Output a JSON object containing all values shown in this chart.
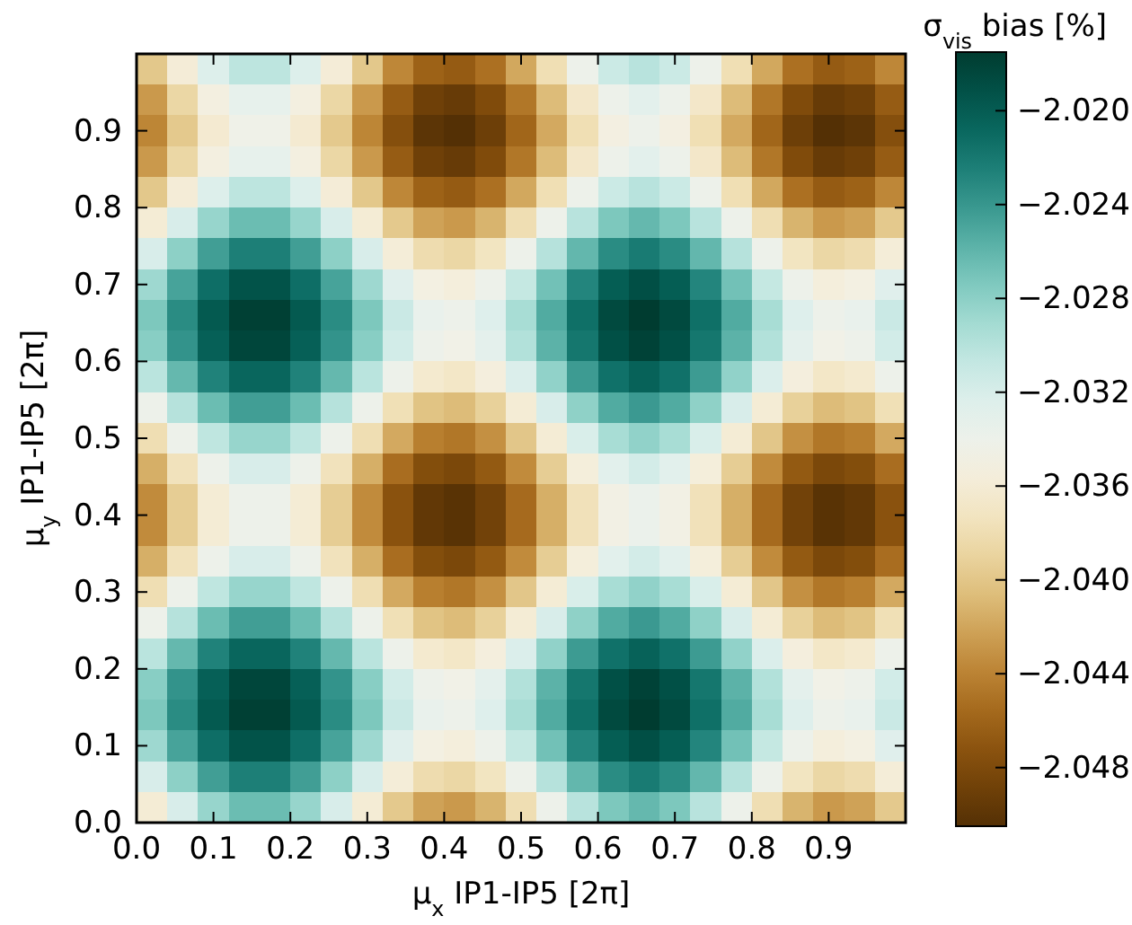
{
  "chart_data": {
    "type": "heatmap",
    "xlabel": "μ$_{x}$ IP1-IP5 [2π]",
    "ylabel": "μ$_{y}$ IP1-IP5 [2π]",
    "clabel": "σ$_{vis}$ bias [%]",
    "xlim": [
      0,
      1
    ],
    "ylim": [
      0,
      1
    ],
    "xticks": [
      {
        "value": 0,
        "label": "0.0"
      },
      0.1,
      0.2,
      0.3,
      0.4,
      0.5,
      0.6,
      0.7,
      0.8,
      0.9
    ],
    "yticks": [
      {
        "value": 0,
        "label": "0.0"
      },
      0.1,
      0.2,
      0.3,
      0.4,
      0.5,
      0.6,
      0.7,
      0.8,
      0.9
    ],
    "clim": [
      -2.0505,
      -2.0175
    ],
    "cticks": [
      {
        "value": -2.02,
        "label": "−2.020"
      },
      {
        "value": -2.024,
        "label": "−2.024"
      },
      {
        "value": -2.028,
        "label": "−2.028"
      },
      {
        "value": -2.032,
        "label": "−2.032"
      },
      {
        "value": -2.036,
        "label": "−2.036"
      },
      {
        "value": -2.04,
        "label": "−2.040"
      },
      {
        "value": -2.044,
        "label": "−2.044"
      },
      {
        "value": -2.048,
        "label": "−2.048"
      }
    ],
    "cells": [
      [
        -2.0399,
        -2.0359,
        -2.0324,
        -2.0304,
        -2.0304,
        -2.0324,
        -2.0359,
        -2.0399,
        -2.0437,
        -2.0461,
        -2.0466,
        -2.0451,
        -2.0419,
        -2.0379,
        -2.034,
        -2.0312,
        -2.0301,
        -2.0312,
        -2.034,
        -2.0379,
        -2.0419,
        -2.0451,
        -2.0466,
        -2.0461,
        -2.0437
      ],
      [
        -2.0427,
        -2.0387,
        -2.0352,
        -2.0332,
        -2.0332,
        -2.0352,
        -2.0387,
        -2.0427,
        -2.0465,
        -2.0489,
        -2.0494,
        -2.0479,
        -2.0447,
        -2.0407,
        -2.0368,
        -2.034,
        -2.0329,
        -2.034,
        -2.0368,
        -2.0407,
        -2.0447,
        -2.0479,
        -2.0494,
        -2.0489,
        -2.0465
      ],
      [
        -2.0438,
        -2.0398,
        -2.0363,
        -2.0343,
        -2.0343,
        -2.0363,
        -2.0398,
        -2.0438,
        -2.0476,
        -2.05,
        -2.0505,
        -2.049,
        -2.0458,
        -2.0418,
        -2.0379,
        -2.0351,
        -2.034,
        -2.0351,
        -2.0379,
        -2.0418,
        -2.0458,
        -2.049,
        -2.0505,
        -2.05,
        -2.0476
      ],
      [
        -2.0427,
        -2.0387,
        -2.0352,
        -2.0332,
        -2.0332,
        -2.0352,
        -2.0387,
        -2.0427,
        -2.0465,
        -2.0489,
        -2.0494,
        -2.0479,
        -2.0447,
        -2.0407,
        -2.0368,
        -2.034,
        -2.0329,
        -2.034,
        -2.0368,
        -2.0407,
        -2.0447,
        -2.0479,
        -2.0494,
        -2.0489,
        -2.0465
      ],
      [
        -2.0399,
        -2.0359,
        -2.0324,
        -2.0304,
        -2.0304,
        -2.0324,
        -2.0359,
        -2.0399,
        -2.0437,
        -2.0461,
        -2.0466,
        -2.0451,
        -2.0419,
        -2.0379,
        -2.034,
        -2.0312,
        -2.0301,
        -2.0312,
        -2.034,
        -2.0379,
        -2.0419,
        -2.0451,
        -2.0466,
        -2.0461,
        -2.0437
      ],
      [
        -2.036,
        -2.032,
        -2.0285,
        -2.0265,
        -2.0265,
        -2.0285,
        -2.032,
        -2.036,
        -2.0398,
        -2.0422,
        -2.0427,
        -2.0412,
        -2.038,
        -2.034,
        -2.0301,
        -2.0273,
        -2.0262,
        -2.0273,
        -2.0301,
        -2.034,
        -2.038,
        -2.0412,
        -2.0427,
        -2.0422,
        -2.0398
      ],
      [
        -2.032,
        -2.028,
        -2.0245,
        -2.0225,
        -2.0225,
        -2.0245,
        -2.028,
        -2.032,
        -2.0358,
        -2.0382,
        -2.0387,
        -2.0372,
        -2.034,
        -2.03,
        -2.0261,
        -2.0233,
        -2.0222,
        -2.0233,
        -2.0261,
        -2.03,
        -2.034,
        -2.0372,
        -2.0387,
        -2.0382,
        -2.0358
      ],
      [
        -2.0288,
        -2.0248,
        -2.0213,
        -2.0193,
        -2.0193,
        -2.0213,
        -2.0248,
        -2.0288,
        -2.0326,
        -2.035,
        -2.0355,
        -2.034,
        -2.0308,
        -2.0268,
        -2.0229,
        -2.0201,
        -2.019,
        -2.0201,
        -2.0229,
        -2.0268,
        -2.0308,
        -2.034,
        -2.0355,
        -2.035,
        -2.0326
      ],
      [
        -2.0273,
        -2.0233,
        -2.0198,
        -2.0178,
        -2.0178,
        -2.0198,
        -2.0233,
        -2.0273,
        -2.0311,
        -2.0335,
        -2.034,
        -2.0325,
        -2.0293,
        -2.0253,
        -2.0214,
        -2.0186,
        -2.0175,
        -2.0186,
        -2.0214,
        -2.0253,
        -2.0293,
        -2.0325,
        -2.034,
        -2.0335,
        -2.0311
      ],
      [
        -2.0278,
        -2.0238,
        -2.0203,
        -2.0183,
        -2.0183,
        -2.0203,
        -2.0238,
        -2.0278,
        -2.0316,
        -2.034,
        -2.0345,
        -2.033,
        -2.0298,
        -2.0258,
        -2.0219,
        -2.0191,
        -2.018,
        -2.0191,
        -2.0219,
        -2.0258,
        -2.0298,
        -2.033,
        -2.0345,
        -2.034,
        -2.0316
      ],
      [
        -2.0302,
        -2.0262,
        -2.0227,
        -2.0207,
        -2.0207,
        -2.0227,
        -2.0262,
        -2.0302,
        -2.034,
        -2.0364,
        -2.0369,
        -2.0354,
        -2.0322,
        -2.0282,
        -2.0243,
        -2.0215,
        -2.0204,
        -2.0215,
        -2.0243,
        -2.0282,
        -2.0322,
        -2.0354,
        -2.0369,
        -2.0364,
        -2.034
      ],
      [
        -2.034,
        -2.03,
        -2.0265,
        -2.0245,
        -2.0245,
        -2.0265,
        -2.03,
        -2.034,
        -2.0378,
        -2.0402,
        -2.0407,
        -2.0392,
        -2.036,
        -2.032,
        -2.0281,
        -2.0253,
        -2.0242,
        -2.0253,
        -2.0281,
        -2.032,
        -2.036,
        -2.0392,
        -2.0407,
        -2.0402,
        -2.0378
      ],
      [
        -2.038,
        -2.034,
        -2.0305,
        -2.0285,
        -2.0285,
        -2.0305,
        -2.034,
        -2.038,
        -2.0418,
        -2.0442,
        -2.0447,
        -2.0432,
        -2.04,
        -2.036,
        -2.0321,
        -2.0293,
        -2.0282,
        -2.0293,
        -2.0321,
        -2.036,
        -2.04,
        -2.0432,
        -2.0447,
        -2.0442,
        -2.0418
      ],
      [
        -2.0415,
        -2.0375,
        -2.034,
        -2.032,
        -2.032,
        -2.034,
        -2.0375,
        -2.0415,
        -2.0453,
        -2.0477,
        -2.0482,
        -2.0467,
        -2.0435,
        -2.0395,
        -2.0356,
        -2.0328,
        -2.0317,
        -2.0328,
        -2.0356,
        -2.0395,
        -2.0435,
        -2.0467,
        -2.0482,
        -2.0477,
        -2.0453
      ],
      [
        -2.0435,
        -2.0395,
        -2.036,
        -2.034,
        -2.034,
        -2.036,
        -2.0395,
        -2.0435,
        -2.0473,
        -2.0497,
        -2.0502,
        -2.0487,
        -2.0455,
        -2.0415,
        -2.0376,
        -2.0348,
        -2.0337,
        -2.0348,
        -2.0376,
        -2.0415,
        -2.0455,
        -2.0487,
        -2.0502,
        -2.0497,
        -2.0473
      ],
      [
        -2.0435,
        -2.0395,
        -2.036,
        -2.034,
        -2.034,
        -2.036,
        -2.0395,
        -2.0435,
        -2.0473,
        -2.0497,
        -2.0502,
        -2.0487,
        -2.0455,
        -2.0415,
        -2.0376,
        -2.0348,
        -2.0337,
        -2.0348,
        -2.0376,
        -2.0415,
        -2.0455,
        -2.0487,
        -2.0502,
        -2.0497,
        -2.0473
      ],
      [
        -2.0415,
        -2.0375,
        -2.034,
        -2.032,
        -2.032,
        -2.034,
        -2.0375,
        -2.0415,
        -2.0453,
        -2.0477,
        -2.0482,
        -2.0467,
        -2.0435,
        -2.0395,
        -2.0356,
        -2.0328,
        -2.0317,
        -2.0328,
        -2.0356,
        -2.0395,
        -2.0435,
        -2.0467,
        -2.0482,
        -2.0477,
        -2.0453
      ],
      [
        -2.038,
        -2.034,
        -2.0305,
        -2.0285,
        -2.0285,
        -2.0305,
        -2.034,
        -2.038,
        -2.0418,
        -2.0442,
        -2.0447,
        -2.0432,
        -2.04,
        -2.036,
        -2.0321,
        -2.0293,
        -2.0282,
        -2.0293,
        -2.0321,
        -2.036,
        -2.04,
        -2.0432,
        -2.0447,
        -2.0442,
        -2.0418
      ],
      [
        -2.034,
        -2.03,
        -2.0265,
        -2.0245,
        -2.0245,
        -2.0265,
        -2.03,
        -2.034,
        -2.0378,
        -2.0402,
        -2.0407,
        -2.0392,
        -2.036,
        -2.032,
        -2.0281,
        -2.0253,
        -2.0242,
        -2.0253,
        -2.0281,
        -2.032,
        -2.036,
        -2.0392,
        -2.0407,
        -2.0402,
        -2.0378
      ],
      [
        -2.0302,
        -2.0262,
        -2.0227,
        -2.0207,
        -2.0207,
        -2.0227,
        -2.0262,
        -2.0302,
        -2.034,
        -2.0364,
        -2.0369,
        -2.0354,
        -2.0322,
        -2.0282,
        -2.0243,
        -2.0215,
        -2.0204,
        -2.0215,
        -2.0243,
        -2.0282,
        -2.0322,
        -2.0354,
        -2.0369,
        -2.0364,
        -2.034
      ],
      [
        -2.0278,
        -2.0238,
        -2.0203,
        -2.0183,
        -2.0183,
        -2.0203,
        -2.0238,
        -2.0278,
        -2.0316,
        -2.034,
        -2.0345,
        -2.033,
        -2.0298,
        -2.0258,
        -2.0219,
        -2.0191,
        -2.018,
        -2.0191,
        -2.0219,
        -2.0258,
        -2.0298,
        -2.033,
        -2.0345,
        -2.034,
        -2.0316
      ],
      [
        -2.0273,
        -2.0233,
        -2.0198,
        -2.0178,
        -2.0178,
        -2.0198,
        -2.0233,
        -2.0273,
        -2.0311,
        -2.0335,
        -2.034,
        -2.0325,
        -2.0293,
        -2.0253,
        -2.0214,
        -2.0186,
        -2.0175,
        -2.0186,
        -2.0214,
        -2.0253,
        -2.0293,
        -2.0325,
        -2.034,
        -2.0335,
        -2.0311
      ],
      [
        -2.0288,
        -2.0248,
        -2.0213,
        -2.0193,
        -2.0193,
        -2.0213,
        -2.0248,
        -2.0288,
        -2.0326,
        -2.035,
        -2.0355,
        -2.034,
        -2.0308,
        -2.0268,
        -2.0229,
        -2.0201,
        -2.019,
        -2.0201,
        -2.0229,
        -2.0268,
        -2.0308,
        -2.034,
        -2.0355,
        -2.035,
        -2.0326
      ],
      [
        -2.032,
        -2.028,
        -2.0245,
        -2.0225,
        -2.0225,
        -2.0245,
        -2.028,
        -2.032,
        -2.0358,
        -2.0382,
        -2.0387,
        -2.0372,
        -2.034,
        -2.03,
        -2.0261,
        -2.0233,
        -2.0222,
        -2.0233,
        -2.0261,
        -2.03,
        -2.034,
        -2.0372,
        -2.0387,
        -2.0382,
        -2.0358
      ],
      [
        -2.036,
        -2.032,
        -2.0285,
        -2.0265,
        -2.0265,
        -2.0285,
        -2.032,
        -2.036,
        -2.0398,
        -2.0422,
        -2.0427,
        -2.0412,
        -2.038,
        -2.034,
        -2.0301,
        -2.0273,
        -2.0262,
        -2.0273,
        -2.0301,
        -2.034,
        -2.038,
        -2.0412,
        -2.0427,
        -2.0422,
        -2.0398
      ]
    ]
  }
}
